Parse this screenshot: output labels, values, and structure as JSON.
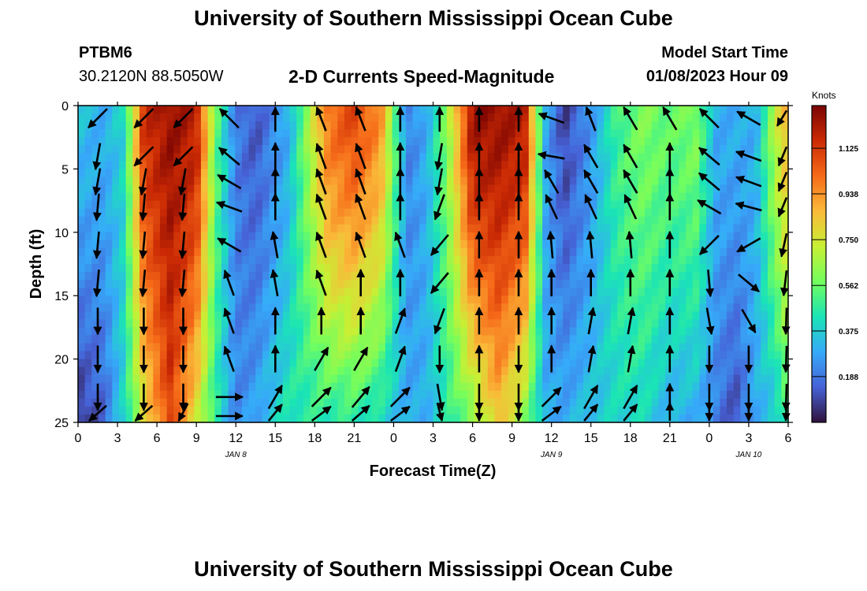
{
  "header": {
    "title": "University of Southern Mississippi Ocean Cube",
    "station": "PTBM6",
    "coords": "30.2120N  88.5050W",
    "chart_title": "2-D Currents Speed-Magnitude",
    "start_label": "Model Start Time",
    "start_value": "01/08/2023 Hour 09"
  },
  "footer": {
    "title": "University of Southern Mississippi Ocean Cube"
  },
  "chart_data": {
    "type": "heatmap",
    "title": "2-D Currents Speed-Magnitude",
    "xlabel": "Forecast Time(Z)",
    "ylabel": "Depth (ft)",
    "x_unit": "forecast hour since 01/08/2023 00Z",
    "x_range": [
      0,
      54
    ],
    "x_ticks": [
      {
        "t": 0,
        "label": "0"
      },
      {
        "t": 3,
        "label": "3"
      },
      {
        "t": 6,
        "label": "6"
      },
      {
        "t": 9,
        "label": "9"
      },
      {
        "t": 12,
        "label": "12"
      },
      {
        "t": 15,
        "label": "15"
      },
      {
        "t": 18,
        "label": "18"
      },
      {
        "t": 21,
        "label": "21"
      },
      {
        "t": 24,
        "label": "0"
      },
      {
        "t": 27,
        "label": "3"
      },
      {
        "t": 30,
        "label": "6"
      },
      {
        "t": 33,
        "label": "9"
      },
      {
        "t": 36,
        "label": "12"
      },
      {
        "t": 39,
        "label": "15"
      },
      {
        "t": 42,
        "label": "18"
      },
      {
        "t": 45,
        "label": "21"
      },
      {
        "t": 48,
        "label": "0"
      },
      {
        "t": 51,
        "label": "3"
      },
      {
        "t": 54,
        "label": "6"
      }
    ],
    "date_labels": [
      {
        "t": 12,
        "label": "JAN 8"
      },
      {
        "t": 36,
        "label": "JAN 9"
      },
      {
        "t": 51,
        "label": "JAN 10"
      }
    ],
    "y_range": [
      0,
      25
    ],
    "y_inverted": true,
    "y_ticks": [
      0,
      5,
      10,
      15,
      20,
      25
    ],
    "colorbar": {
      "label": "Knots",
      "range": [
        0,
        1.3
      ],
      "ticks": [
        "0.188",
        "0.375",
        "0.562",
        "0.750",
        "0.938",
        "1.125"
      ],
      "colors": [
        "#30123b",
        "#4662d7",
        "#36aaf9",
        "#1ae4b6",
        "#72fe5e",
        "#c8ef34",
        "#faba39",
        "#f66b19",
        "#cb2a04",
        "#7a0403"
      ]
    },
    "speed_profile": {
      "hours": [
        0,
        2,
        3.5,
        5,
        7,
        9,
        10.5,
        12,
        13.5,
        16,
        19,
        21,
        23,
        25,
        26.5,
        28,
        30,
        32,
        34,
        35.5,
        37,
        39,
        41,
        43,
        45,
        47,
        48.5,
        50,
        51.5,
        53,
        54
      ],
      "top": [
        0.35,
        0.3,
        0.4,
        1.15,
        1.25,
        1.2,
        0.55,
        0.2,
        0.12,
        0.3,
        1.0,
        1.1,
        0.95,
        0.2,
        0.3,
        0.6,
        1.25,
        1.25,
        1.2,
        0.3,
        0.08,
        0.25,
        0.5,
        0.6,
        0.55,
        0.6,
        0.3,
        0.3,
        0.3,
        0.7,
        0.9
      ],
      "bottom": [
        0.05,
        0.15,
        0.4,
        0.75,
        1.1,
        0.75,
        0.45,
        0.22,
        0.28,
        0.45,
        0.45,
        0.45,
        0.4,
        0.3,
        0.3,
        0.45,
        0.6,
        0.85,
        0.6,
        0.3,
        0.3,
        0.35,
        0.4,
        0.4,
        0.3,
        0.3,
        0.2,
        0.1,
        0.3,
        0.35,
        0.5
      ]
    },
    "vector_rows_ft": [
      1,
      4,
      6,
      8,
      11,
      14,
      17,
      20,
      23,
      24.5
    ],
    "vector_hours": [
      1.5,
      5,
      8,
      11.5,
      15,
      18.5,
      21.5,
      24.5,
      27.5,
      30.5,
      33.5,
      36,
      39,
      42,
      45,
      48,
      51,
      54
    ],
    "vector_direction_deg": [
      [
        225,
        225,
        225,
        315,
        0,
        340,
        340,
        0,
        0,
        0,
        0,
        290,
        340,
        330,
        330,
        315,
        300,
        235
      ],
      [
        190,
        225,
        225,
        310,
        0,
        340,
        340,
        0,
        190,
        0,
        0,
        280,
        330,
        330,
        0,
        310,
        290,
        225
      ],
      [
        190,
        190,
        190,
        300,
        0,
        340,
        340,
        0,
        190,
        0,
        0,
        330,
        330,
        330,
        0,
        310,
        290,
        225
      ],
      [
        185,
        185,
        185,
        290,
        0,
        340,
        340,
        0,
        200,
        0,
        0,
        335,
        335,
        335,
        0,
        300,
        285,
        225
      ],
      [
        185,
        185,
        185,
        300,
        350,
        340,
        340,
        340,
        220,
        0,
        0,
        355,
        355,
        355,
        0,
        225,
        240,
        210
      ],
      [
        185,
        185,
        185,
        340,
        350,
        340,
        0,
        0,
        220,
        0,
        0,
        0,
        0,
        0,
        0,
        175,
        130,
        200
      ],
      [
        180,
        180,
        180,
        340,
        0,
        0,
        0,
        20,
        200,
        0,
        0,
        0,
        10,
        10,
        0,
        170,
        150,
        190
      ],
      [
        180,
        180,
        180,
        340,
        0,
        30,
        30,
        20,
        180,
        0,
        180,
        0,
        10,
        10,
        0,
        180,
        180,
        190
      ],
      [
        180,
        180,
        180,
        90,
        30,
        45,
        40,
        45,
        170,
        180,
        180,
        45,
        30,
        30,
        0,
        180,
        180,
        190
      ],
      [
        220,
        220,
        200,
        90,
        30,
        45,
        40,
        45,
        170,
        180,
        180,
        45,
        30,
        30,
        0,
        180,
        180,
        190
      ]
    ]
  }
}
